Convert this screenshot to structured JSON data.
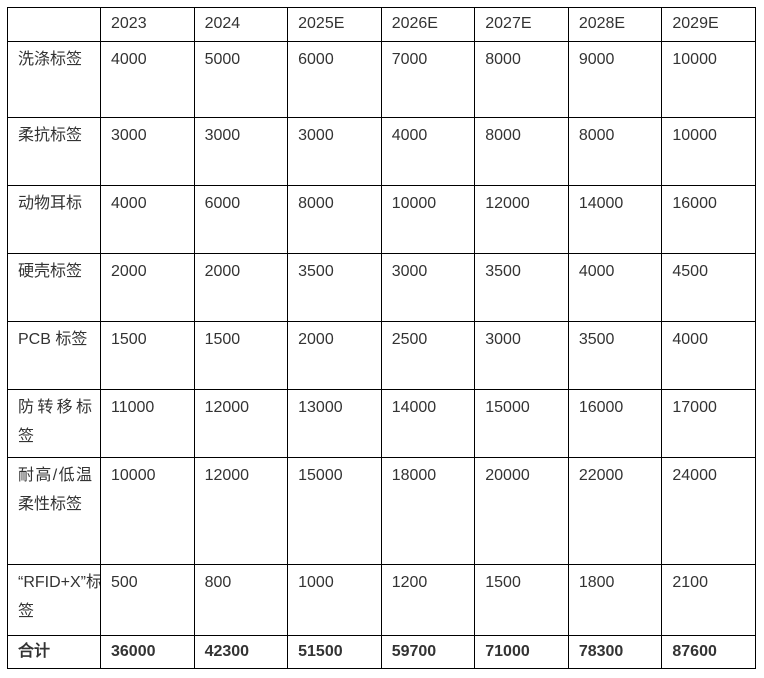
{
  "colors": {
    "border": "#000000",
    "text": "#333333",
    "background": "#ffffff"
  },
  "table": {
    "columns": [
      "2023",
      "2024",
      "2025E",
      "2026E",
      "2027E",
      "2028E",
      "2029E"
    ],
    "rows": [
      {
        "label": "洗涤标签",
        "values": [
          "4000",
          "5000",
          "6000",
          "7000",
          "8000",
          "9000",
          "10000"
        ]
      },
      {
        "label": "柔抗标签",
        "values": [
          "3000",
          "3000",
          "3000",
          "4000",
          "8000",
          "8000",
          "10000"
        ]
      },
      {
        "label": "动物耳标",
        "values": [
          "4000",
          "6000",
          "8000",
          "10000",
          "12000",
          "14000",
          "16000"
        ]
      },
      {
        "label": "硬壳标签",
        "values": [
          "2000",
          "2000",
          "3500",
          "3000",
          "3500",
          "4000",
          "4500"
        ]
      },
      {
        "label": "PCB 标签",
        "values": [
          "1500",
          "1500",
          "2000",
          "2500",
          "3000",
          "3500",
          "4000"
        ]
      },
      {
        "label": "防转移标签",
        "values": [
          "11000",
          "12000",
          "13000",
          "14000",
          "15000",
          "16000",
          "17000"
        ]
      },
      {
        "label": "耐高/低温柔性标签",
        "values": [
          "10000",
          "12000",
          "15000",
          "18000",
          "20000",
          "22000",
          "24000"
        ]
      },
      {
        "label": "“RFID+X”标签",
        "values": [
          "500",
          "800",
          "1000",
          "1200",
          "1500",
          "1800",
          "2100"
        ]
      }
    ],
    "total": {
      "label": "合计",
      "values": [
        "36000",
        "42300",
        "51500",
        "59700",
        "71000",
        "78300",
        "87600"
      ]
    }
  }
}
